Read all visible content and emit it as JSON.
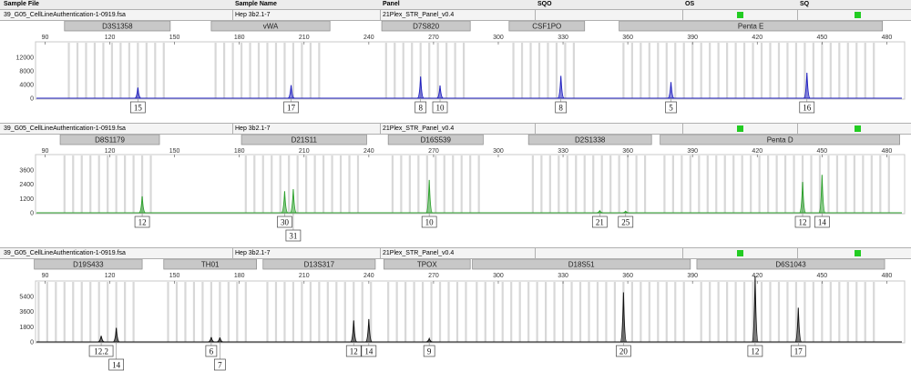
{
  "header": {
    "col_sample_file": "Sample File",
    "col_sample_name": "Sample Name",
    "col_panel": "Panel",
    "col_sqo": "SQO",
    "col_os": "OS",
    "col_sq": "SQ"
  },
  "panels": [
    {
      "sample_file": "39_G05_CellLineAuthentication-1-0919.fsa",
      "sample_name": "Hep 3b2.1-7",
      "panel": "21Plex_STR_Panel_v0.4",
      "color": "#1f1fbf",
      "loci": [
        "D3S1358",
        "vWA",
        "D7S820",
        "CSF1PO",
        "Penta E"
      ],
      "y_ticks": [
        "12000",
        "8000",
        "4000",
        "0"
      ],
      "x_ticks": [
        "90",
        "120",
        "150",
        "180",
        "210",
        "240",
        "270",
        "300",
        "330",
        "360",
        "390",
        "420",
        "450",
        "480"
      ],
      "alleles": [
        "15",
        "17",
        "8",
        "10",
        "8",
        "5",
        "16"
      ]
    },
    {
      "sample_file": "39_G05_CellLineAuthentication-1-0919.fsa",
      "sample_name": "Hep 3b2.1-7",
      "panel": "21Plex_STR_Panel_v0.4",
      "color": "#2ca02c",
      "loci": [
        "D8S1179",
        "D21S11",
        "D16S539",
        "D2S1338",
        "Penta D"
      ],
      "y_ticks": [
        "3600",
        "2400",
        "1200",
        "0"
      ],
      "x_ticks": [
        "90",
        "120",
        "150",
        "180",
        "210",
        "240",
        "270",
        "300",
        "330",
        "360",
        "390",
        "420",
        "450",
        "480"
      ],
      "alleles": [
        "12",
        "30",
        "31",
        "10",
        "21",
        "25",
        "12",
        "14"
      ]
    },
    {
      "sample_file": "39_G05_CellLineAuthentication-1-0919.fsa",
      "sample_name": "Hep 3b2.1-7",
      "panel": "21Plex_STR_Panel_v0.4",
      "color": "#111111",
      "loci": [
        "D19S433",
        "TH01",
        "D13S317",
        "TPOX",
        "D18S51",
        "D6S1043"
      ],
      "y_ticks": [
        "5400",
        "3600",
        "1800",
        "0"
      ],
      "x_ticks": [
        "90",
        "120",
        "150",
        "180",
        "210",
        "240",
        "270",
        "300",
        "330",
        "360",
        "390",
        "420",
        "450",
        "480"
      ],
      "alleles": [
        "12.2",
        "14",
        "6",
        "7",
        "12",
        "14",
        "9",
        "20",
        "12",
        "17"
      ]
    }
  ],
  "chart_data": [
    {
      "type": "line",
      "x_unit": "bp",
      "xlim": [
        86,
        487
      ],
      "ylim": [
        0,
        13500
      ],
      "locus_ranges": [
        {
          "name": "D3S1358",
          "start": 99,
          "end": 148
        },
        {
          "name": "vWA",
          "start": 167,
          "end": 222
        },
        {
          "name": "D7S820",
          "start": 246,
          "end": 287
        },
        {
          "name": "CSF1PO",
          "start": 305,
          "end": 340
        },
        {
          "name": "Penta E",
          "start": 356,
          "end": 478
        }
      ],
      "peaks": [
        {
          "allele": "15",
          "size": 133,
          "height": 3100
        },
        {
          "allele": "17",
          "size": 204,
          "height": 3800
        },
        {
          "allele": "8",
          "size": 264,
          "height": 6300
        },
        {
          "allele": "10",
          "size": 273,
          "height": 3700
        },
        {
          "allele": "8",
          "size": 329,
          "height": 6500
        },
        {
          "allele": "5",
          "size": 380,
          "height": 4700
        },
        {
          "allele": "16",
          "size": 443,
          "height": 7400
        }
      ]
    },
    {
      "type": "line",
      "x_unit": "bp",
      "xlim": [
        86,
        487
      ],
      "ylim": [
        0,
        4700
      ],
      "locus_ranges": [
        {
          "name": "D8S1179",
          "start": 97,
          "end": 143
        },
        {
          "name": "D21S11",
          "start": 181,
          "end": 239
        },
        {
          "name": "D16S539",
          "start": 249,
          "end": 293
        },
        {
          "name": "D2S1338",
          "start": 314,
          "end": 371
        },
        {
          "name": "Penta D",
          "start": 375,
          "end": 486
        }
      ],
      "peaks": [
        {
          "allele": "12",
          "size": 135,
          "height": 1600
        },
        {
          "allele": "30",
          "size": 201,
          "height": 2100
        },
        {
          "allele": "31",
          "size": 205,
          "height": 2300
        },
        {
          "allele": "10",
          "size": 268,
          "height": 3200
        },
        {
          "allele": "21",
          "size": 347,
          "height": 200
        },
        {
          "allele": "25",
          "size": 359,
          "height": 150
        },
        {
          "allele": "12",
          "size": 441,
          "height": 3000
        },
        {
          "allele": "14",
          "size": 450,
          "height": 3700
        }
      ]
    },
    {
      "type": "line",
      "x_unit": "bp",
      "xlim": [
        86,
        487
      ],
      "ylim": [
        0,
        7600
      ],
      "locus_ranges": [
        {
          "name": "D19S433",
          "start": 85,
          "end": 135
        },
        {
          "name": "TH01",
          "start": 145,
          "end": 188
        },
        {
          "name": "D13S317",
          "start": 191,
          "end": 243
        },
        {
          "name": "TPOX",
          "start": 247,
          "end": 287
        },
        {
          "name": "D18S51",
          "start": 288,
          "end": 389
        },
        {
          "name": "D6S1043",
          "start": 392,
          "end": 479
        }
      ],
      "peaks": [
        {
          "allele": "12.2",
          "size": 116,
          "height": 900
        },
        {
          "allele": "14",
          "size": 123,
          "height": 2100
        },
        {
          "allele": "6",
          "size": 167,
          "height": 700
        },
        {
          "allele": "7",
          "size": 171,
          "height": 650
        },
        {
          "allele": "12",
          "size": 233,
          "height": 3200
        },
        {
          "allele": "14",
          "size": 240,
          "height": 3400
        },
        {
          "allele": "9",
          "size": 268,
          "height": 500
        },
        {
          "allele": "20",
          "size": 358,
          "height": 7400
        },
        {
          "allele": "12",
          "size": 419,
          "height": 9800
        },
        {
          "allele": "17",
          "size": 439,
          "height": 5100
        }
      ]
    }
  ]
}
